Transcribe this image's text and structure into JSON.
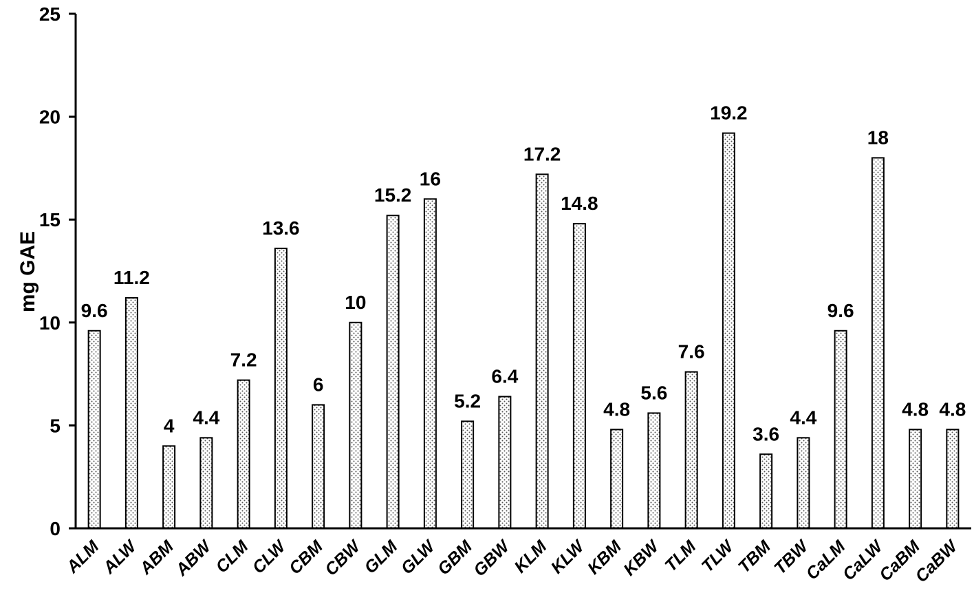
{
  "chart_data": {
    "type": "bar",
    "title": "",
    "xlabel": "",
    "ylabel": "mg GAE",
    "ylim": [
      0,
      25
    ],
    "yticks": [
      0,
      5,
      10,
      15,
      20,
      25
    ],
    "grid": false,
    "legend": "none",
    "bar_fill": "dotted-pattern",
    "categories": [
      "ALM",
      "ALW",
      "ABM",
      "ABW",
      "CLM",
      "CLW",
      "CBM",
      "CBW",
      "GLM",
      "GLW",
      "GBM",
      "GBW",
      "KLM",
      "KLW",
      "KBM",
      "KBW",
      "TLM",
      "TLW",
      "TBM",
      "TBW",
      "CaLM",
      "CaLW",
      "CaBM",
      "CaBW"
    ],
    "values": [
      9.6,
      11.2,
      4,
      4.4,
      7.2,
      13.6,
      6,
      10,
      15.2,
      16,
      5.2,
      6.4,
      17.2,
      14.8,
      4.8,
      5.6,
      7.6,
      19.2,
      3.6,
      4.4,
      9.6,
      18,
      4.8,
      4.8
    ],
    "data_labels": [
      "9.6",
      "11.2",
      "4",
      "4.4",
      "7.2",
      "13.6",
      "6",
      "10",
      "15.2",
      "16",
      "5.2",
      "6.4",
      "17.2",
      "14.8",
      "4.8",
      "5.6",
      "7.6",
      "19.2",
      "3.6",
      "4.4",
      "9.6",
      "18",
      "4.8",
      "4.8"
    ]
  }
}
